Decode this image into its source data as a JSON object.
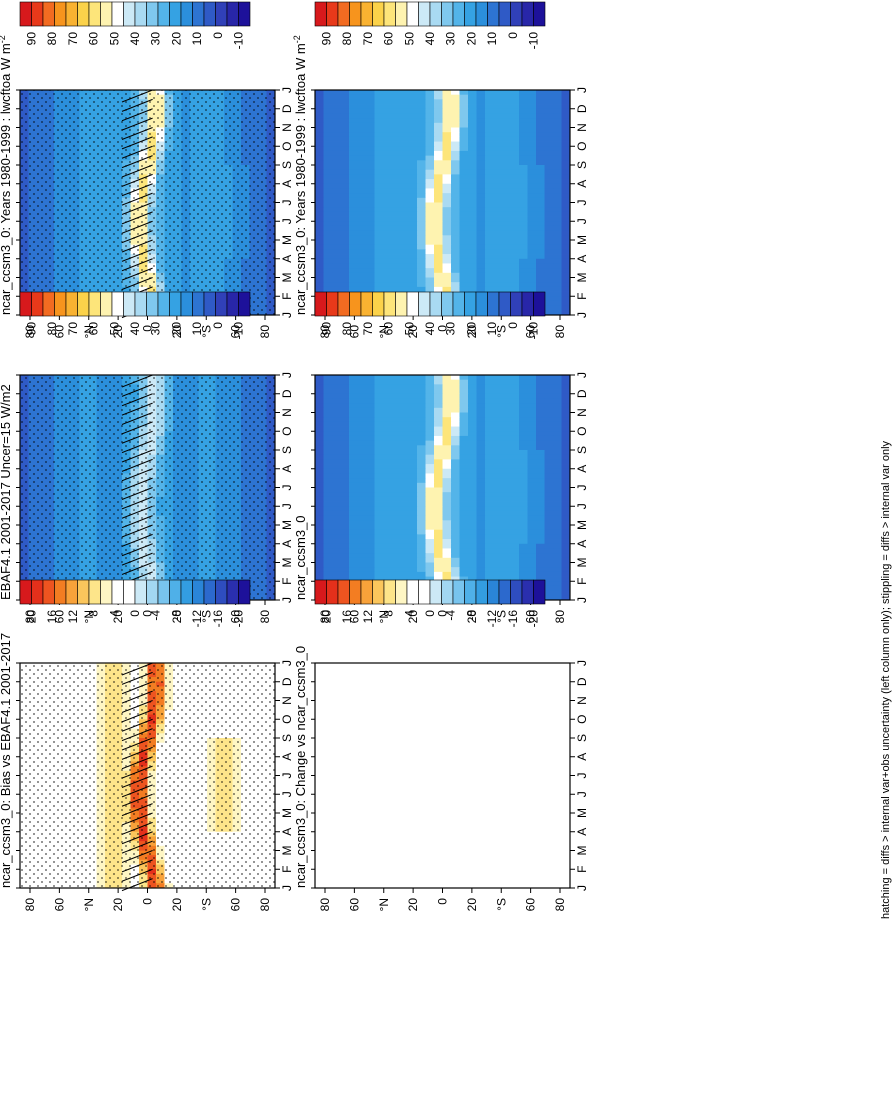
{
  "figure_note": "hatching = diffs > internal var+obs uncertainty (left column only); stippling = diffs > internal var only",
  "months": [
    "J",
    "F",
    "M",
    "A",
    "M",
    "J",
    "J",
    "A",
    "S",
    "O",
    "N",
    "D",
    "J"
  ],
  "latitude_ticks": [
    "80",
    "60",
    "°N",
    "20",
    "0",
    "20",
    "°S",
    "60",
    "80"
  ],
  "colorbars": {
    "absolute": {
      "labels": [
        "90",
        "80",
        "70",
        "60",
        "50",
        "40",
        "30",
        "20",
        "10",
        "0",
        "-10"
      ],
      "colors": [
        "#d7191c",
        "#e8391a",
        "#f26b21",
        "#f7941d",
        "#f9b231",
        "#fbd24a",
        "#fde57a",
        "#fef3b0",
        "#ffffff",
        "#cce9f6",
        "#a9daf2",
        "#7fc8ee",
        "#53b4e9",
        "#35a2e3",
        "#2b8fdc",
        "#2d74d2",
        "#2f5ac6",
        "#3040b8",
        "#2826a8",
        "#1d119a"
      ]
    },
    "difference": {
      "labels": [
        "20",
        "16",
        "12",
        "8",
        "4",
        "0",
        "-4",
        "-8",
        "-12",
        "-16",
        "-20"
      ],
      "colors": [
        "#d7191c",
        "#e4301b",
        "#ee5420",
        "#f37d22",
        "#f8a23a",
        "#fbc65c",
        "#fde58a",
        "#fef6c4",
        "#ffffff",
        "#ffffff",
        "#cce9f6",
        "#a2d7f2",
        "#78c4ee",
        "#4fb0e8",
        "#339de1",
        "#2a85d8",
        "#2c69cd",
        "#2e4dbf",
        "#2a2fae",
        "#1d119a"
      ]
    }
  },
  "chart_data": [
    {
      "id": "p1",
      "type": "heatmap",
      "title": "ncar_ccsm3_0: Years 1980-1999 : lwcftoa W m",
      "title_sup": "-2",
      "xlabel": "",
      "ylabel": "latitude",
      "x": "months",
      "y_range": [
        -90,
        90
      ],
      "colorbar": "absolute",
      "field": "model",
      "stipple": true,
      "hatch": true
    },
    {
      "id": "p2",
      "type": "heatmap",
      "title": "ncar_ccsm3_0: Years 1980-1999 : lwcftoa W m",
      "title_sup": "-2",
      "xlabel": "",
      "ylabel": "latitude",
      "x": "months",
      "y_range": [
        -90,
        90
      ],
      "colorbar": "absolute",
      "field": "model",
      "stipple": false,
      "hatch": false
    },
    {
      "id": "p3",
      "type": "heatmap",
      "title": "EBAF4.1 2001-2017 Uncer=15 W/m2",
      "title_sup": "",
      "xlabel": "",
      "ylabel": "latitude",
      "x": "months",
      "y_range": [
        -90,
        90
      ],
      "colorbar": "absolute",
      "field": "obs",
      "stipple": true,
      "hatch": true
    },
    {
      "id": "p4",
      "type": "heatmap",
      "title": "ncar_ccsm3_0",
      "title_sup": "",
      "xlabel": "",
      "ylabel": "latitude",
      "x": "months",
      "y_range": [
        -90,
        90
      ],
      "colorbar": "absolute",
      "field": "model",
      "stipple": false,
      "hatch": false
    },
    {
      "id": "p5",
      "type": "heatmap",
      "title": "ncar_ccsm3_0: Bias vs EBAF4.1 2001-2017",
      "title_sup": "",
      "xlabel": "",
      "ylabel": "latitude",
      "x": "months",
      "y_range": [
        -90,
        90
      ],
      "colorbar": "difference",
      "field": "bias",
      "stipple": true,
      "hatch": true
    },
    {
      "id": "p6",
      "type": "heatmap",
      "title": "ncar_ccsm3_0: Change vs ncar_ccsm3_0",
      "title_sup": "",
      "xlabel": "",
      "ylabel": "latitude",
      "x": "months",
      "y_range": [
        -90,
        90
      ],
      "colorbar": "difference",
      "field": "empty",
      "stipple": false,
      "hatch": false
    }
  ]
}
